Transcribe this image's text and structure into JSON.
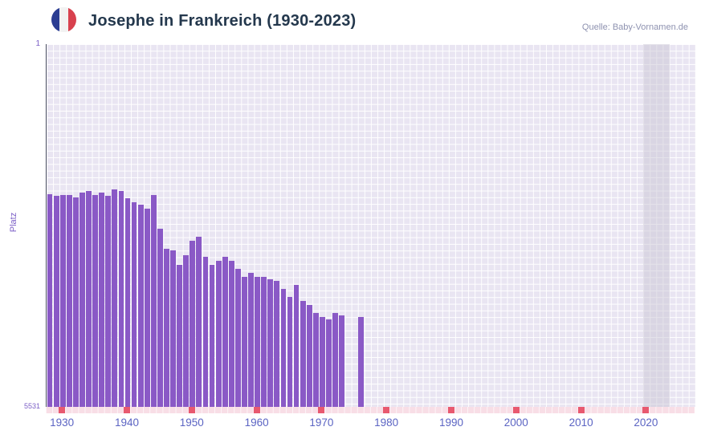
{
  "header": {
    "title": "Josephe in Frankreich (1930-2023)",
    "source": "Quelle: Baby-Vornamen.de"
  },
  "flag_icon": {
    "name": "france-flag",
    "blue": "#2b3d92",
    "white": "#f2f2f2",
    "red": "#d8414e"
  },
  "chart_data": {
    "type": "bar",
    "title": "Josephe in Frankreich (1930-2023)",
    "xlabel": "",
    "ylabel": "Platz",
    "y_min": 1,
    "y_max": 5531,
    "y_inverted": true,
    "y_top_label": "1",
    "y_bottom_label": "5531",
    "x_range": [
      1928,
      2028
    ],
    "x_ticks": [
      1930,
      1940,
      1950,
      1960,
      1970,
      1980,
      1990,
      2000,
      2010,
      2020
    ],
    "grid": true,
    "legend": false,
    "bar_color": "#8a59c6",
    "plot_bg": "#e9e5f2",
    "grid_color": "#ffffff",
    "tick_marker_color": "#e8596f",
    "strip_color": "#f8dee6",
    "recent_band": {
      "from": 2020,
      "to": 2024
    },
    "points": [
      {
        "year": 1928,
        "rank": 2290
      },
      {
        "year": 1929,
        "rank": 2310
      },
      {
        "year": 1930,
        "rank": 2295
      },
      {
        "year": 1931,
        "rank": 2305
      },
      {
        "year": 1932,
        "rank": 2340
      },
      {
        "year": 1933,
        "rank": 2260
      },
      {
        "year": 1934,
        "rank": 2245
      },
      {
        "year": 1935,
        "rank": 2295
      },
      {
        "year": 1936,
        "rank": 2270
      },
      {
        "year": 1937,
        "rank": 2315
      },
      {
        "year": 1938,
        "rank": 2215
      },
      {
        "year": 1939,
        "rank": 2235
      },
      {
        "year": 1940,
        "rank": 2350
      },
      {
        "year": 1941,
        "rank": 2415
      },
      {
        "year": 1942,
        "rank": 2450
      },
      {
        "year": 1943,
        "rank": 2510
      },
      {
        "year": 1944,
        "rank": 2295
      },
      {
        "year": 1945,
        "rank": 2815
      },
      {
        "year": 1946,
        "rank": 3120
      },
      {
        "year": 1947,
        "rank": 3145
      },
      {
        "year": 1948,
        "rank": 3365
      },
      {
        "year": 1949,
        "rank": 3220
      },
      {
        "year": 1950,
        "rank": 3000
      },
      {
        "year": 1951,
        "rank": 2940
      },
      {
        "year": 1952,
        "rank": 3245
      },
      {
        "year": 1953,
        "rank": 3365
      },
      {
        "year": 1954,
        "rank": 3305
      },
      {
        "year": 1955,
        "rank": 3245
      },
      {
        "year": 1956,
        "rank": 3305
      },
      {
        "year": 1957,
        "rank": 3425
      },
      {
        "year": 1958,
        "rank": 3550
      },
      {
        "year": 1959,
        "rank": 3490
      },
      {
        "year": 1960,
        "rank": 3550
      },
      {
        "year": 1961,
        "rank": 3550
      },
      {
        "year": 1962,
        "rank": 3585
      },
      {
        "year": 1963,
        "rank": 3610
      },
      {
        "year": 1964,
        "rank": 3735
      },
      {
        "year": 1965,
        "rank": 3855
      },
      {
        "year": 1966,
        "rank": 3670
      },
      {
        "year": 1967,
        "rank": 3915
      },
      {
        "year": 1968,
        "rank": 3975
      },
      {
        "year": 1969,
        "rank": 4100
      },
      {
        "year": 1970,
        "rank": 4160
      },
      {
        "year": 1971,
        "rank": 4200
      },
      {
        "year": 1972,
        "rank": 4100
      },
      {
        "year": 1973,
        "rank": 4140
      },
      {
        "year": 1976,
        "rank": 4160
      }
    ]
  }
}
